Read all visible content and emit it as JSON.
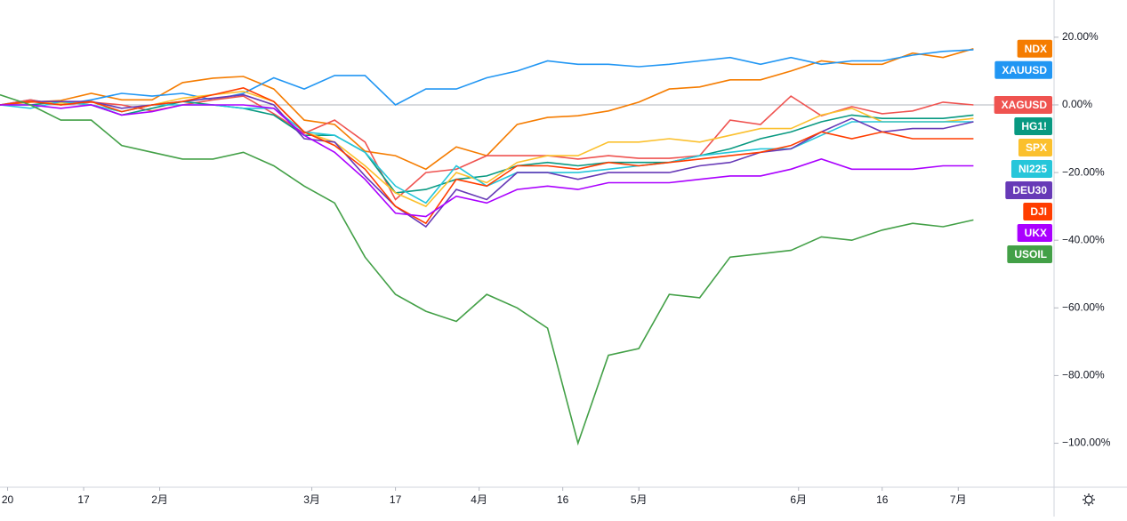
{
  "chart_data": {
    "type": "line",
    "x": [
      0,
      4,
      8,
      12,
      16,
      20,
      24,
      28,
      32,
      36,
      40,
      44,
      48,
      52,
      56,
      60,
      64,
      68,
      72,
      76,
      80,
      84,
      88,
      92,
      96,
      100,
      104,
      108,
      112,
      116,
      120,
      124,
      128
    ],
    "xlim": [
      0,
      138.6
    ],
    "xticks": [
      {
        "value": 1,
        "label": "20"
      },
      {
        "value": 11,
        "label": "17"
      },
      {
        "value": 21,
        "label": "2月"
      },
      {
        "value": 41,
        "label": "3月"
      },
      {
        "value": 52,
        "label": "17"
      },
      {
        "value": 63,
        "label": "4月"
      },
      {
        "value": 74,
        "label": "16"
      },
      {
        "value": 84,
        "label": "5月"
      },
      {
        "value": 105,
        "label": "6月"
      },
      {
        "value": 116,
        "label": "16"
      },
      {
        "value": 126,
        "label": "7月"
      }
    ],
    "ylim": [
      -113,
      31
    ],
    "yticks": [
      {
        "value": 20,
        "label": "20.00%"
      },
      {
        "value": 0,
        "label": "0.00%"
      },
      {
        "value": -20,
        "label": "−20.00%"
      },
      {
        "value": -40,
        "label": "−40.00%"
      },
      {
        "value": -60,
        "label": "−60.00%"
      },
      {
        "value": -80,
        "label": "−80.00%"
      },
      {
        "value": -100,
        "label": "−100.00%"
      }
    ],
    "series": [
      {
        "name": "NDX",
        "color": "#f57c00",
        "values": [
          0,
          0.8,
          1.3,
          3.4,
          1.5,
          1.5,
          6.6,
          7.9,
          8.4,
          4.7,
          -4.5,
          -5.8,
          -13.7,
          -15,
          -19,
          -12.4,
          -15,
          -5.8,
          -3.7,
          -3.2,
          -1.8,
          0.8,
          4.7,
          5.3,
          7.4,
          7.4,
          10,
          13,
          12,
          12,
          15.3,
          14,
          16.6
        ]
      },
      {
        "name": "XAUUSD",
        "color": "#2196f3",
        "values": [
          0,
          1.5,
          0,
          1.5,
          3.4,
          2.6,
          3.4,
          1.5,
          3.4,
          8,
          4.7,
          8.7,
          8.7,
          0,
          4.7,
          4.7,
          8,
          10,
          13,
          12,
          12,
          11.3,
          12,
          13,
          14,
          12,
          14,
          12,
          13,
          13,
          14.7,
          15.8,
          16.3
        ]
      },
      {
        "name": "XAGUSD",
        "color": "#ef5350",
        "values": [
          0,
          1.5,
          0,
          0.8,
          0,
          -1.8,
          0,
          1.5,
          2.6,
          -2.6,
          -8.4,
          -4.5,
          -11,
          -28,
          -20,
          -19,
          -15,
          -15,
          -15,
          -16,
          -15,
          -15.8,
          -15.8,
          -15,
          -4.5,
          -5.8,
          2.6,
          -3.2,
          -0.5,
          -2.6,
          -1.8,
          0.8,
          0
        ]
      },
      {
        "name": "HG1!",
        "color": "#089981",
        "values": [
          0,
          0,
          1,
          0,
          -3,
          -1,
          1,
          0,
          -1,
          -3,
          -9,
          -9,
          -14,
          -26,
          -25,
          -22,
          -21,
          -18,
          -17,
          -18,
          -17,
          -17,
          -17,
          -15,
          -13,
          -10,
          -8,
          -5,
          -3,
          -4,
          -4,
          -4,
          -3
        ]
      },
      {
        "name": "SPX",
        "color": "#fbc02d",
        "values": [
          0,
          1,
          0.5,
          1,
          -2,
          0,
          2,
          3,
          4,
          1,
          -8,
          -11,
          -18,
          -26,
          -30,
          -20,
          -23,
          -17,
          -15,
          -15,
          -11,
          -11,
          -10,
          -11,
          -9,
          -7,
          -7,
          -3,
          -1,
          -5,
          -5,
          -5,
          -4
        ]
      },
      {
        "name": "NI225",
        "color": "#26c6da",
        "values": [
          0,
          -1,
          1,
          0,
          -2,
          0,
          0,
          0,
          -1,
          -1,
          -8,
          -9,
          -14,
          -24,
          -29,
          -18,
          -24,
          -20,
          -20,
          -20,
          -19,
          -18,
          -17,
          -15,
          -14,
          -13,
          -13,
          -9,
          -5,
          -5,
          -5,
          -5,
          -5
        ]
      },
      {
        "name": "DEU30",
        "color": "#673ab7",
        "values": [
          0,
          1,
          1,
          1,
          -1,
          0,
          1,
          2,
          3,
          0,
          -10,
          -11,
          -21,
          -30,
          -36,
          -25,
          -28,
          -20,
          -20,
          -22,
          -20,
          -20,
          -20,
          -18,
          -17,
          -14,
          -13,
          -8,
          -4,
          -8,
          -7,
          -7,
          -5
        ]
      },
      {
        "name": "DJI",
        "color": "#ff3d00",
        "values": [
          0,
          1,
          0,
          1,
          -2,
          0,
          1,
          3,
          5,
          1,
          -8,
          -12,
          -19,
          -30,
          -35,
          -22,
          -24,
          -18,
          -18,
          -19,
          -17,
          -18,
          -17,
          -16,
          -15,
          -14,
          -12,
          -8,
          -10,
          -8,
          -10,
          -10,
          -10
        ]
      },
      {
        "name": "UKX",
        "color": "#aa00ff",
        "values": [
          0,
          0,
          -1,
          0,
          -3,
          -2,
          0,
          0,
          0,
          -1,
          -9,
          -14,
          -22,
          -32,
          -33,
          -27,
          -29,
          -25,
          -24,
          -25,
          -23,
          -23,
          -23,
          -22,
          -21,
          -21,
          -19,
          -16,
          -19,
          -19,
          -19,
          -18,
          -18
        ]
      },
      {
        "name": "USOIL",
        "color": "#43a047",
        "values": [
          3,
          0,
          -4.5,
          -4.5,
          -12,
          -14,
          -16,
          -16,
          -14,
          -18,
          -24,
          -29,
          -45,
          -56,
          -61,
          -64,
          -56,
          -60,
          -66,
          -100,
          -74,
          -72,
          -56,
          -57,
          -45,
          -44,
          -43,
          -39,
          -40,
          -37,
          -35,
          -36,
          -34
        ]
      }
    ]
  }
}
